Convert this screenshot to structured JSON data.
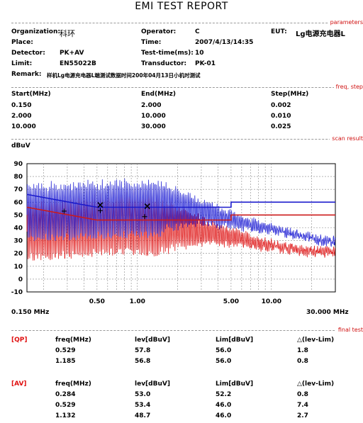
{
  "report": {
    "title": "EMI TEST REPORT"
  },
  "sections": {
    "parameters": "parameters",
    "freq": "freq, step",
    "scan": "scan result",
    "final": "final test"
  },
  "params": {
    "organization_label": "Organization:",
    "organization_value": "科环",
    "operator_label": "Operator:",
    "operator_value": "C",
    "eut_label": "EUT:",
    "eut_value": "Lg电源充电器L",
    "place_label": "Place:",
    "place_value": "",
    "time_label": "Time:",
    "time_value": "2007/4/13/14:35",
    "detector_label": "Detector:",
    "detector_value": "PK+AV",
    "testtime_label": "Test-time(ms):",
    "testtime_value": "10",
    "limit_label": "Limit:",
    "limit_value": "EN55022B",
    "transducer_label": "Transductor:",
    "transducer_value": "PK-01",
    "remark_label": "Remark:",
    "remark_value": "样机Lg电源充电器L端测试数据时间200年04月13日小机时测试"
  },
  "freq_table": {
    "headers": [
      "Start(MHz)",
      "End(MHz)",
      "Step(MHz)"
    ],
    "rows": [
      [
        "0.150",
        "2.000",
        "0.002"
      ],
      [
        "2.000",
        "10.000",
        "0.010"
      ],
      [
        "10.000",
        "30.000",
        "0.025"
      ]
    ]
  },
  "chart_data": {
    "type": "line",
    "ylabel": "dBuV",
    "x_scale": "log",
    "xlim": [
      0.15,
      30
    ],
    "ylim": [
      -10,
      90
    ],
    "y_ticks": [
      90,
      80,
      70,
      60,
      50,
      40,
      30,
      20,
      10,
      0,
      -10
    ],
    "x_tick_labels": [
      {
        "x": 0.5,
        "label": "0.50"
      },
      {
        "x": 1.0,
        "label": "1.00"
      },
      {
        "x": 5.0,
        "label": "5.00"
      },
      {
        "x": 10.0,
        "label": "10.00"
      }
    ],
    "x_start_label": "0.150 MHz",
    "x_end_label": "30.000 MHz",
    "grid": "dashed",
    "colors": {
      "qp_limit": "#1a1acc",
      "av_limit": "#cc1a1a",
      "pk_trace": "#2b2bd6",
      "av_trace": "#e02020"
    },
    "series": [
      {
        "key": "qp_limit",
        "points": [
          [
            0.15,
            66
          ],
          [
            0.5,
            56
          ],
          [
            5,
            56
          ],
          [
            5,
            60
          ],
          [
            30,
            60
          ]
        ]
      },
      {
        "key": "av_limit",
        "points": [
          [
            0.15,
            56
          ],
          [
            0.5,
            46
          ],
          [
            5,
            46
          ],
          [
            5,
            50
          ],
          [
            30,
            50
          ]
        ]
      },
      {
        "key": "pk_trace",
        "points": [
          [
            0.15,
            53
          ],
          [
            0.3,
            54
          ],
          [
            0.5,
            55
          ],
          [
            1,
            56
          ],
          [
            2,
            55
          ],
          [
            3,
            52
          ],
          [
            5,
            46
          ],
          [
            8,
            41
          ],
          [
            12,
            37
          ],
          [
            18,
            33
          ],
          [
            25,
            30
          ],
          [
            30,
            29
          ]
        ]
      },
      {
        "key": "av_trace",
        "points": [
          [
            0.15,
            40
          ],
          [
            0.3,
            42
          ],
          [
            0.5,
            44
          ],
          [
            1,
            45
          ],
          [
            2,
            40
          ],
          [
            3,
            37
          ],
          [
            5,
            33
          ],
          [
            8,
            28
          ],
          [
            12,
            25
          ],
          [
            18,
            22
          ],
          [
            30,
            21
          ]
        ]
      }
    ],
    "markers": [
      {
        "x": 0.529,
        "y": 57.8,
        "symbol": "x"
      },
      {
        "x": 1.185,
        "y": 56.8,
        "symbol": "x"
      },
      {
        "x": 0.284,
        "y": 53.0,
        "symbol": "+"
      },
      {
        "x": 0.529,
        "y": 53.4,
        "symbol": "+"
      },
      {
        "x": 1.132,
        "y": 48.7,
        "symbol": "+"
      }
    ]
  },
  "qp": {
    "tag": "[QP]",
    "headers": [
      "freq(MHz)",
      "lev[dBuV]",
      "Lim[dBuV]",
      "△(lev-Lim)"
    ],
    "rows": [
      [
        "0.529",
        "57.8",
        "56.0",
        "1.8"
      ],
      [
        "1.185",
        "56.8",
        "56.0",
        "0.8"
      ]
    ]
  },
  "av": {
    "tag": "[AV]",
    "headers": [
      "freq(MHz)",
      "lev[dBuV]",
      "Lim[dBuV]",
      "△(lev-Lim)"
    ],
    "rows": [
      [
        "0.284",
        "53.0",
        "52.2",
        "0.8"
      ],
      [
        "0.529",
        "53.4",
        "46.0",
        "7.4"
      ],
      [
        "1.132",
        "48.7",
        "46.0",
        "2.7"
      ]
    ]
  }
}
